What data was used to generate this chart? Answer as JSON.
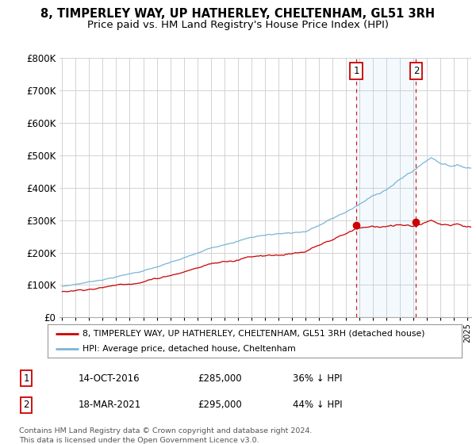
{
  "title": "8, TIMPERLEY WAY, UP HATHERLEY, CHELTENHAM, GL51 3RH",
  "subtitle": "Price paid vs. HM Land Registry's House Price Index (HPI)",
  "legend_line1": "8, TIMPERLEY WAY, UP HATHERLEY, CHELTENHAM, GL51 3RH (detached house)",
  "legend_line2": "HPI: Average price, detached house, Cheltenham",
  "footnote": "Contains HM Land Registry data © Crown copyright and database right 2024.\nThis data is licensed under the Open Government Licence v3.0.",
  "marker1_date": "14-OCT-2016",
  "marker1_price": "£285,000",
  "marker1_hpi": "36% ↓ HPI",
  "marker2_date": "18-MAR-2021",
  "marker2_price": "£295,000",
  "marker2_hpi": "44% ↓ HPI",
  "sale1_x": 2016.79,
  "sale1_y": 285000,
  "sale2_x": 2021.21,
  "sale2_y": 295000,
  "ylim": [
    0,
    800000
  ],
  "xlim": [
    1994.8,
    2025.3
  ],
  "hpi_color": "#7ab4d8",
  "price_color": "#cc0000",
  "vline_color": "#cc0000",
  "background_color": "#ffffff",
  "grid_color": "#cccccc",
  "title_fontsize": 10.5,
  "subtitle_fontsize": 9.5
}
